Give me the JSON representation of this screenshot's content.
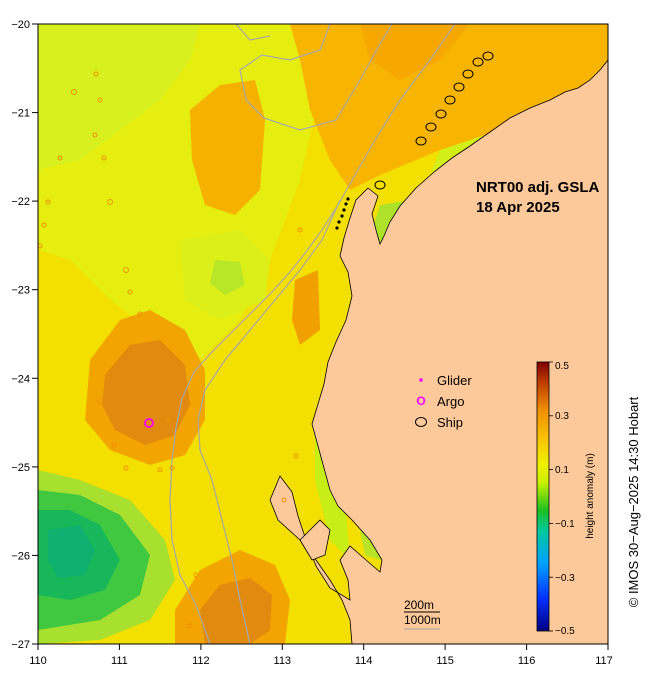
{
  "map": {
    "title_line1": "NRT00 adj. GSLA",
    "title_line2": "18 Apr 2025",
    "x_ticks": [
      "110",
      "111",
      "112",
      "113",
      "114",
      "115",
      "116",
      "117"
    ],
    "y_ticks": [
      "−20",
      "−21",
      "−22",
      "−23",
      "−24",
      "−25",
      "−26",
      "−27"
    ],
    "legend": {
      "glider": "Glider",
      "argo": "Argo",
      "ship": "Ship",
      "argo_symbol": "O"
    },
    "scale": {
      "line1": "200m",
      "line2": "1000m"
    },
    "colorbar": {
      "label": "height anomaly (m)",
      "ticks": [
        "0.5",
        "0.3",
        "0.1",
        "−0.1",
        "−0.3",
        "−0.5"
      ],
      "range": [
        -0.5,
        0.5
      ]
    },
    "credit": "©  IMOS 30−Aug−2025 14:30 Hobart",
    "colors": {
      "land": "#fdc89a",
      "glider": "#ff00ff",
      "argo": "#ff00ff",
      "ship": "#000000"
    }
  }
}
